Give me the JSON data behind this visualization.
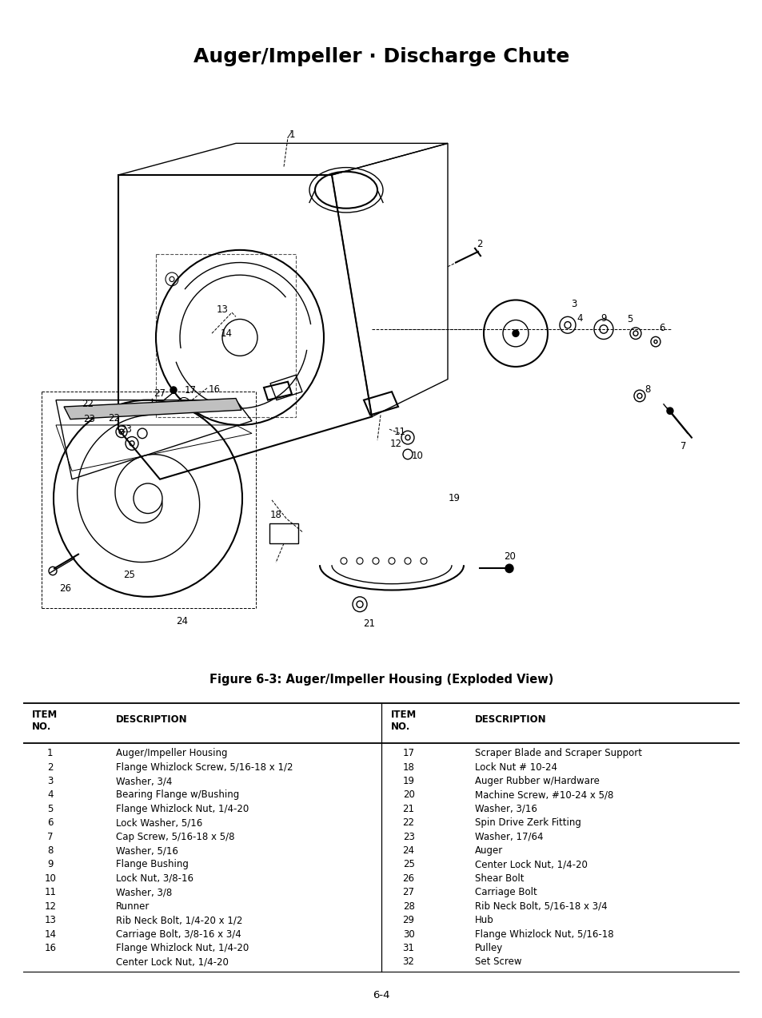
{
  "title": "Auger/Impeller · Discharge Chute",
  "figure_caption": "Figure 6-3: Auger/Impeller Housing (Exploded View)",
  "page_number": "6-4",
  "left_items": [
    [
      "1",
      "Auger/Impeller Housing"
    ],
    [
      "2",
      "Flange Whizlock Screw, 5/16-18 x 1/2"
    ],
    [
      "3",
      "Washer, 3/4"
    ],
    [
      "4",
      "Bearing Flange w/Bushing"
    ],
    [
      "5",
      "Flange Whizlock Nut, 1/4-20"
    ],
    [
      "6",
      "Lock Washer, 5/16"
    ],
    [
      "7",
      "Cap Screw, 5/16-18 x 5/8"
    ],
    [
      "8",
      "Washer, 5/16"
    ],
    [
      "9",
      "Flange Bushing"
    ],
    [
      "10",
      "Lock Nut, 3/8-16"
    ],
    [
      "11",
      "Washer, 3/8"
    ],
    [
      "12",
      "Runner"
    ],
    [
      "13",
      "Rib Neck Bolt, 1/4-20 x 1/2"
    ],
    [
      "14",
      "Carriage Bolt, 3/8-16 x 3/4"
    ],
    [
      "16",
      "Flange Whizlock Nut, 1/4-20"
    ],
    [
      "",
      "Center Lock Nut, 1/4-20"
    ]
  ],
  "right_items": [
    [
      "17",
      "Scraper Blade and Scraper Support"
    ],
    [
      "18",
      "Lock Nut # 10-24"
    ],
    [
      "19",
      "Auger Rubber w/Hardware"
    ],
    [
      "20",
      "Machine Screw, #10-24 x 5/8"
    ],
    [
      "21",
      "Washer, 3/16"
    ],
    [
      "22",
      "Spin Drive Zerk Fitting"
    ],
    [
      "23",
      "Washer, 17/64"
    ],
    [
      "24",
      "Auger"
    ],
    [
      "25",
      "Center Lock Nut, 1/4-20"
    ],
    [
      "26",
      "Shear Bolt"
    ],
    [
      "27",
      "Carriage Bolt"
    ],
    [
      "28",
      "Rib Neck Bolt, 5/16-18 x 3/4"
    ],
    [
      "29",
      "Hub"
    ],
    [
      "30",
      "Flange Whizlock Nut, 5/16-18"
    ],
    [
      "31",
      "Pulley"
    ],
    [
      "32",
      "Set Screw"
    ]
  ],
  "title_fontsize": 18,
  "caption_fontsize": 10.5,
  "table_fontsize": 8.5,
  "header_fontsize": 8.5
}
